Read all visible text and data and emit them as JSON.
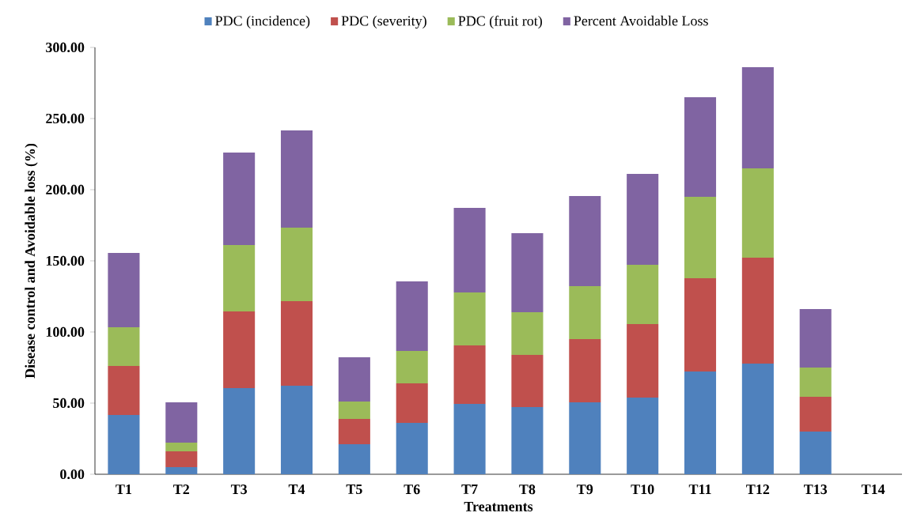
{
  "chart_data": {
    "type": "bar",
    "stacked": true,
    "xlabel": "Treatments",
    "ylabel": "Disease control and Avoidable loss (%)",
    "categories": [
      "T1",
      "T2",
      "T3",
      "T4",
      "T5",
      "T6",
      "T7",
      "T8",
      "T9",
      "T10",
      "T11",
      "T12",
      "T13",
      "T14"
    ],
    "series": [
      {
        "name": "PDC (incidence)",
        "color": "#4f81bd",
        "values": [
          41.7,
          5.0,
          60.6,
          62.2,
          21.1,
          36.1,
          49.4,
          47.2,
          50.6,
          53.9,
          72.2,
          77.8,
          30.0,
          0
        ]
      },
      {
        "name": "PDC (severity)",
        "color": "#c0504d",
        "values": [
          34.4,
          11.1,
          53.8,
          59.5,
          17.8,
          27.8,
          41.2,
          36.7,
          44.4,
          51.7,
          65.6,
          74.4,
          24.4,
          0
        ]
      },
      {
        "name": "PDC (fruit rot)",
        "color": "#9bbb59",
        "values": [
          27.2,
          6.1,
          46.7,
          51.6,
          12.2,
          22.8,
          37.2,
          30.0,
          37.2,
          41.6,
          57.2,
          62.8,
          20.6,
          0
        ]
      },
      {
        "name": "Percent Avoidable Loss",
        "color": "#8064a2",
        "values": [
          52.3,
          28.4,
          65.0,
          68.4,
          31.1,
          48.9,
          59.4,
          55.5,
          63.4,
          63.9,
          70.0,
          71.1,
          41.1,
          0
        ]
      }
    ],
    "ylim": [
      0,
      300
    ],
    "yticks": [
      {
        "value": 0,
        "label": "0.00"
      },
      {
        "value": 50,
        "label": "50.00"
      },
      {
        "value": 100,
        "label": "100.00"
      },
      {
        "value": 150,
        "label": "150.00"
      },
      {
        "value": 200,
        "label": "200.00"
      },
      {
        "value": 250,
        "label": "250.00"
      },
      {
        "value": 300,
        "label": "300.00"
      }
    ],
    "grid": false,
    "legend": "top"
  }
}
